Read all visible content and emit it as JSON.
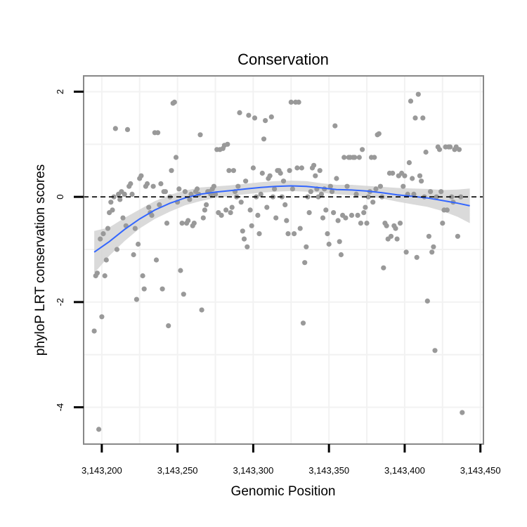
{
  "chart_data": {
    "type": "scatter",
    "title": "Conservation",
    "xlabel": "Genomic Position",
    "ylabel": "phyloP LRT conservation scores",
    "xlim": [
      3143188,
      3143452
    ],
    "ylim": [
      -4.7,
      2.3
    ],
    "x_ticks": [
      3143200,
      3143250,
      3143300,
      3143350,
      3143400,
      3143450
    ],
    "x_tick_labels": [
      "3,143,200",
      "3,143,250",
      "3,143,300",
      "3,143,350",
      "3,143,400",
      "3,143,450"
    ],
    "y_ticks": [
      -4,
      -2,
      0,
      2
    ],
    "y_tick_labels": [
      "-4",
      "-2",
      "0",
      "2"
    ],
    "reference_line": {
      "y": 0,
      "style": "dashed"
    },
    "colors": {
      "points": "#999999",
      "smooth": "#3366ff",
      "ribbon": "#d3d3d3",
      "panel_border": "#888888",
      "grid": "#f2f2f2"
    },
    "points": [
      [
        3143195,
        -2.55
      ],
      [
        3143196,
        -1.5
      ],
      [
        3143197,
        -1.45
      ],
      [
        3143198,
        -4.42
      ],
      [
        3143199,
        -0.8
      ],
      [
        3143200,
        -2.28
      ],
      [
        3143201,
        -0.7
      ],
      [
        3143202,
        -1.5
      ],
      [
        3143203,
        -1.2
      ],
      [
        3143204,
        -0.6
      ],
      [
        3143205,
        -0.3
      ],
      [
        3143206,
        -0.1
      ],
      [
        3143207,
        -0.25
      ],
      [
        3143208,
        0.0
      ],
      [
        3143209,
        1.3
      ],
      [
        3143210,
        -1.0
      ],
      [
        3143211,
        0.05
      ],
      [
        3143212,
        -0.05
      ],
      [
        3143213,
        0.1
      ],
      [
        3143214,
        -0.4
      ],
      [
        3143215,
        0.05
      ],
      [
        3143216,
        -0.55
      ],
      [
        3143217,
        1.28
      ],
      [
        3143218,
        0.2
      ],
      [
        3143219,
        0.25
      ],
      [
        3143220,
        0.05
      ],
      [
        3143221,
        -1.1
      ],
      [
        3143222,
        -0.6
      ],
      [
        3143223,
        -1.95
      ],
      [
        3143224,
        -0.9
      ],
      [
        3143225,
        0.35
      ],
      [
        3143226,
        0.4
      ],
      [
        3143227,
        -1.5
      ],
      [
        3143228,
        -1.75
      ],
      [
        3143229,
        0.2
      ],
      [
        3143230,
        0.25
      ],
      [
        3143231,
        -0.2
      ],
      [
        3143232,
        -0.3
      ],
      [
        3143233,
        -0.35
      ],
      [
        3143234,
        0.2
      ],
      [
        3143235,
        1.22
      ],
      [
        3143236,
        -1.2
      ],
      [
        3143237,
        1.22
      ],
      [
        3143238,
        -0.15
      ],
      [
        3143239,
        0.25
      ],
      [
        3143240,
        -1.75
      ],
      [
        3143241,
        0.1
      ],
      [
        3143242,
        0.1
      ],
      [
        3143243,
        -0.5
      ],
      [
        3143244,
        -2.45
      ],
      [
        3143245,
        0.0
      ],
      [
        3143246,
        0.5
      ],
      [
        3143247,
        1.78
      ],
      [
        3143248,
        1.8
      ],
      [
        3143249,
        0.75
      ],
      [
        3143250,
        -0.1
      ],
      [
        3143251,
        0.15
      ],
      [
        3143252,
        -1.4
      ],
      [
        3143253,
        -0.5
      ],
      [
        3143254,
        -1.85
      ],
      [
        3143255,
        0.1
      ],
      [
        3143256,
        -0.5
      ],
      [
        3143257,
        -0.45
      ],
      [
        3143258,
        -0.05
      ],
      [
        3143259,
        0.05
      ],
      [
        3143260,
        -0.55
      ],
      [
        3143261,
        -0.5
      ],
      [
        3143262,
        0.1
      ],
      [
        3143263,
        0.15
      ],
      [
        3143264,
        0.05
      ],
      [
        3143265,
        1.18
      ],
      [
        3143266,
        -2.15
      ],
      [
        3143267,
        -0.4
      ],
      [
        3143268,
        -0.25
      ],
      [
        3143269,
        -0.15
      ],
      [
        3143270,
        0.1
      ],
      [
        3143271,
        0.1
      ],
      [
        3143272,
        0.05
      ],
      [
        3143273,
        0.15
      ],
      [
        3143274,
        0.2
      ],
      [
        3143275,
        0.05
      ],
      [
        3143276,
        0.9
      ],
      [
        3143277,
        -0.3
      ],
      [
        3143278,
        0.9
      ],
      [
        3143279,
        -0.35
      ],
      [
        3143280,
        0.92
      ],
      [
        3143281,
        0.98
      ],
      [
        3143282,
        -0.25
      ],
      [
        3143283,
        1.0
      ],
      [
        3143284,
        0.5
      ],
      [
        3143285,
        -0.3
      ],
      [
        3143286,
        -0.2
      ],
      [
        3143287,
        0.5
      ],
      [
        3143288,
        0.1
      ],
      [
        3143289,
        0.0
      ],
      [
        3143290,
        0.2
      ],
      [
        3143291,
        1.6
      ],
      [
        3143292,
        -0.1
      ],
      [
        3143293,
        -0.65
      ],
      [
        3143294,
        -0.8
      ],
      [
        3143295,
        0.3
      ],
      [
        3143296,
        -0.95
      ],
      [
        3143297,
        1.55
      ],
      [
        3143298,
        -0.25
      ],
      [
        3143299,
        -0.55
      ],
      [
        3143300,
        0.55
      ],
      [
        3143301,
        1.5
      ],
      [
        3143302,
        0.0
      ],
      [
        3143303,
        -0.35
      ],
      [
        3143304,
        -0.7
      ],
      [
        3143305,
        0.05
      ],
      [
        3143306,
        0.45
      ],
      [
        3143307,
        1.1
      ],
      [
        3143308,
        1.45
      ],
      [
        3143309,
        -0.2
      ],
      [
        3143310,
        0.35
      ],
      [
        3143311,
        0.4
      ],
      [
        3143312,
        1.52
      ],
      [
        3143313,
        0.0
      ],
      [
        3143314,
        0.15
      ],
      [
        3143315,
        -0.4
      ],
      [
        3143316,
        0.5
      ],
      [
        3143317,
        0.5
      ],
      [
        3143318,
        0.45
      ],
      [
        3143319,
        0.0
      ],
      [
        3143320,
        0.3
      ],
      [
        3143321,
        -0.15
      ],
      [
        3143322,
        -0.45
      ],
      [
        3143323,
        -0.7
      ],
      [
        3143324,
        0.5
      ],
      [
        3143325,
        1.8
      ],
      [
        3143326,
        0.15
      ],
      [
        3143327,
        -0.7
      ],
      [
        3143328,
        1.8
      ],
      [
        3143329,
        0.55
      ],
      [
        3143330,
        1.8
      ],
      [
        3143331,
        -0.6
      ],
      [
        3143332,
        0.55
      ],
      [
        3143333,
        -2.4
      ],
      [
        3143334,
        -1.25
      ],
      [
        3143335,
        -0.95
      ],
      [
        3143336,
        0.0
      ],
      [
        3143337,
        -0.3
      ],
      [
        3143338,
        0.1
      ],
      [
        3143339,
        0.55
      ],
      [
        3143340,
        0.6
      ],
      [
        3143341,
        0.4
      ],
      [
        3143342,
        0.15
      ],
      [
        3143343,
        0.0
      ],
      [
        3143344,
        0.5
      ],
      [
        3143345,
        0.05
      ],
      [
        3143346,
        -0.4
      ],
      [
        3143347,
        0.15
      ],
      [
        3143348,
        -0.25
      ],
      [
        3143349,
        -0.7
      ],
      [
        3143350,
        -0.9
      ],
      [
        3143351,
        0.2
      ],
      [
        3143352,
        0.1
      ],
      [
        3143353,
        -0.3
      ],
      [
        3143354,
        1.35
      ],
      [
        3143355,
        0.35
      ],
      [
        3143356,
        -0.45
      ],
      [
        3143357,
        -0.85
      ],
      [
        3143358,
        -1.1
      ],
      [
        3143359,
        -0.35
      ],
      [
        3143360,
        0.75
      ],
      [
        3143361,
        -0.4
      ],
      [
        3143362,
        0.2
      ],
      [
        3143363,
        0.75
      ],
      [
        3143364,
        0.75
      ],
      [
        3143365,
        -0.35
      ],
      [
        3143366,
        0.75
      ],
      [
        3143367,
        0.75
      ],
      [
        3143368,
        0.05
      ],
      [
        3143369,
        -0.35
      ],
      [
        3143370,
        0.75
      ],
      [
        3143371,
        -0.5
      ],
      [
        3143372,
        0.9
      ],
      [
        3143373,
        -0.3
      ],
      [
        3143374,
        -0.2
      ],
      [
        3143375,
        -0.5
      ],
      [
        3143376,
        0.0
      ],
      [
        3143377,
        0.1
      ],
      [
        3143378,
        0.75
      ],
      [
        3143379,
        -0.1
      ],
      [
        3143380,
        0.75
      ],
      [
        3143381,
        0.15
      ],
      [
        3143382,
        1.18
      ],
      [
        3143383,
        1.2
      ],
      [
        3143384,
        0.2
      ],
      [
        3143385,
        0.0
      ],
      [
        3143386,
        -1.35
      ],
      [
        3143387,
        -0.5
      ],
      [
        3143388,
        -0.55
      ],
      [
        3143389,
        -0.8
      ],
      [
        3143390,
        0.45
      ],
      [
        3143391,
        -0.75
      ],
      [
        3143392,
        0.45
      ],
      [
        3143393,
        -0.55
      ],
      [
        3143394,
        -0.6
      ],
      [
        3143395,
        -0.8
      ],
      [
        3143396,
        0.4
      ],
      [
        3143397,
        -0.5
      ],
      [
        3143398,
        0.45
      ],
      [
        3143399,
        0.2
      ],
      [
        3143400,
        0.4
      ],
      [
        3143401,
        -1.05
      ],
      [
        3143402,
        0.05
      ],
      [
        3143403,
        0.65
      ],
      [
        3143404,
        1.82
      ],
      [
        3143405,
        0.35
      ],
      [
        3143406,
        0.05
      ],
      [
        3143407,
        1.5
      ],
      [
        3143408,
        -1.15
      ],
      [
        3143409,
        1.95
      ],
      [
        3143410,
        0.4
      ],
      [
        3143411,
        0.3
      ],
      [
        3143412,
        1.5
      ],
      [
        3143413,
        0.0
      ],
      [
        3143414,
        0.85
      ],
      [
        3143415,
        -1.98
      ],
      [
        3143416,
        -0.75
      ],
      [
        3143417,
        0.1
      ],
      [
        3143418,
        -1.05
      ],
      [
        3143419,
        -0.95
      ],
      [
        3143420,
        -2.92
      ],
      [
        3143421,
        0.0
      ],
      [
        3143422,
        0.95
      ],
      [
        3143423,
        0.9
      ],
      [
        3143424,
        0.1
      ],
      [
        3143425,
        -0.5
      ],
      [
        3143426,
        -0.25
      ],
      [
        3143427,
        0.95
      ],
      [
        3143428,
        -0.25
      ],
      [
        3143429,
        0.95
      ],
      [
        3143430,
        0.95
      ],
      [
        3143431,
        0.0
      ],
      [
        3143432,
        -0.1
      ],
      [
        3143433,
        0.9
      ],
      [
        3143434,
        0.95
      ],
      [
        3143435,
        -0.75
      ],
      [
        3143436,
        0.9
      ],
      [
        3143437,
        0.0
      ],
      [
        3143438,
        -4.1
      ]
    ],
    "smooth": {
      "method": "loess",
      "x": [
        3143195,
        3143205,
        3143215,
        3143225,
        3143235,
        3143245,
        3143255,
        3143265,
        3143275,
        3143285,
        3143295,
        3143305,
        3143315,
        3143325,
        3143335,
        3143345,
        3143355,
        3143365,
        3143375,
        3143385,
        3143395,
        3143405,
        3143415,
        3143425,
        3143435,
        3143443
      ],
      "y": [
        -1.05,
        -0.85,
        -0.62,
        -0.42,
        -0.25,
        -0.12,
        -0.02,
        0.05,
        0.09,
        0.12,
        0.15,
        0.18,
        0.2,
        0.21,
        0.2,
        0.17,
        0.14,
        0.13,
        0.11,
        0.08,
        0.04,
        0.01,
        -0.02,
        -0.07,
        -0.12,
        -0.17
      ],
      "lower": [
        -1.45,
        -1.12,
        -0.84,
        -0.6,
        -0.42,
        -0.28,
        -0.16,
        -0.08,
        -0.02,
        0.02,
        0.05,
        0.08,
        0.1,
        0.11,
        0.1,
        0.08,
        0.05,
        0.03,
        0.01,
        -0.03,
        -0.09,
        -0.14,
        -0.19,
        -0.27,
        -0.38,
        -0.5
      ],
      "upper": [
        -0.65,
        -0.58,
        -0.4,
        -0.24,
        -0.08,
        0.04,
        0.12,
        0.18,
        0.2,
        0.22,
        0.25,
        0.28,
        0.3,
        0.31,
        0.3,
        0.26,
        0.23,
        0.23,
        0.21,
        0.19,
        0.17,
        0.16,
        0.15,
        0.13,
        0.14,
        0.16
      ]
    }
  }
}
